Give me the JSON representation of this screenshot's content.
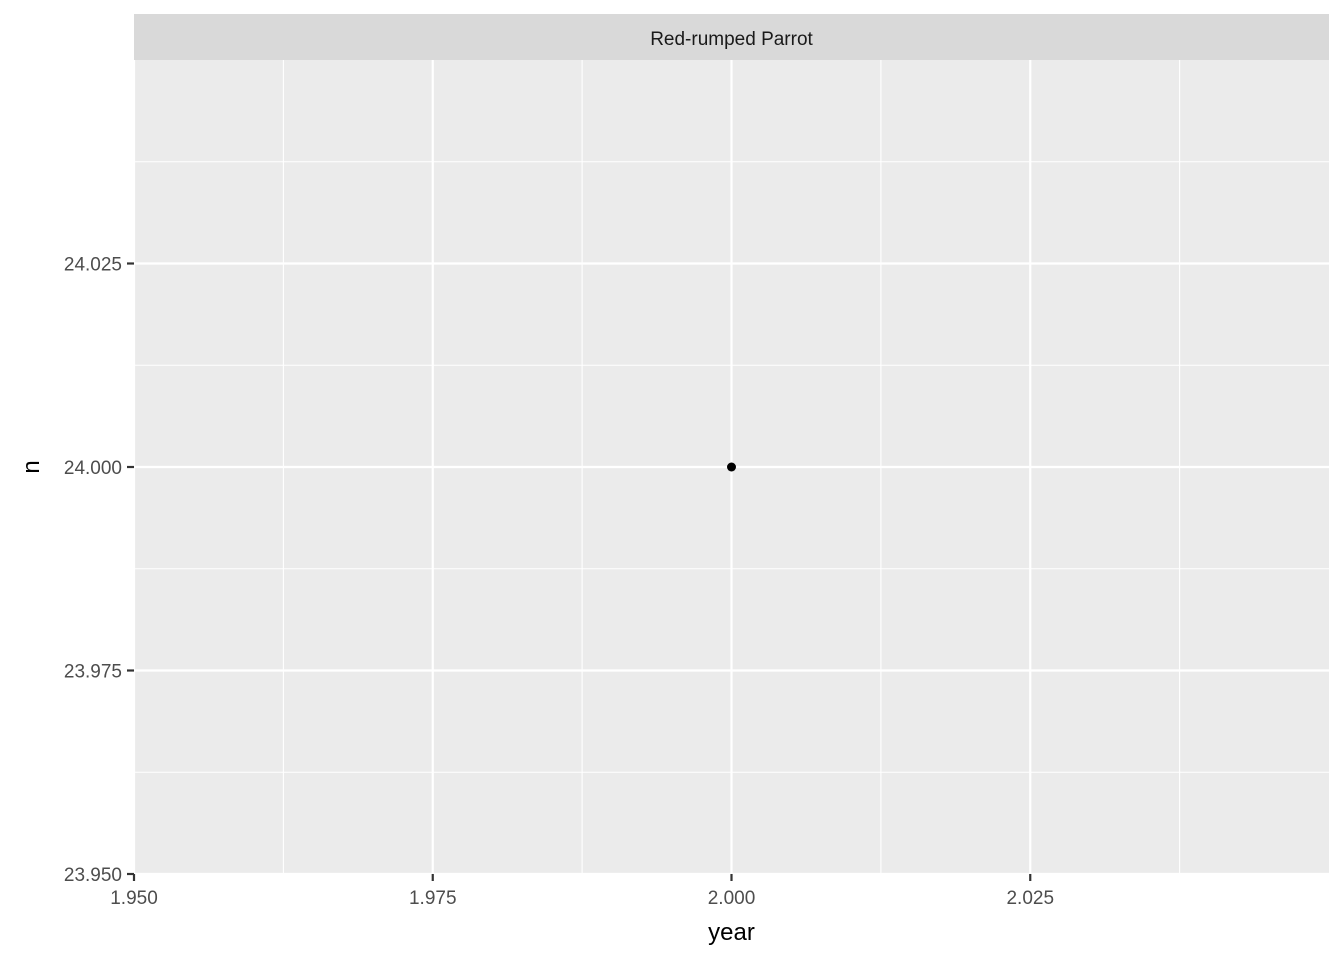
{
  "chart_data": {
    "type": "scatter",
    "facet_label": "Red-rumped Parrot",
    "xlabel": "year",
    "ylabel": "n",
    "xlim": [
      1.95,
      2.05
    ],
    "ylim": [
      23.95,
      24.05
    ],
    "x_ticks": [
      1.95,
      1.975,
      2.0,
      2.025
    ],
    "x_tick_labels": [
      "1.950",
      "1.975",
      "2.000",
      "2.025"
    ],
    "y_ticks": [
      23.95,
      23.975,
      24.0,
      24.025
    ],
    "y_tick_labels": [
      "23.950",
      "23.975",
      "24.000",
      "24.025"
    ],
    "x_minor": [
      1.9625,
      1.9875,
      2.0125,
      2.0375
    ],
    "y_minor": [
      23.9625,
      23.9875,
      24.0125,
      24.0375
    ],
    "series": [
      {
        "x": [
          2.0
        ],
        "y": [
          24.0
        ]
      }
    ],
    "grid": true,
    "colors": {
      "panel_background": "#ebebeb",
      "strip_background": "#d9d9d9",
      "grid": "#ffffff",
      "point": "#000000"
    }
  }
}
